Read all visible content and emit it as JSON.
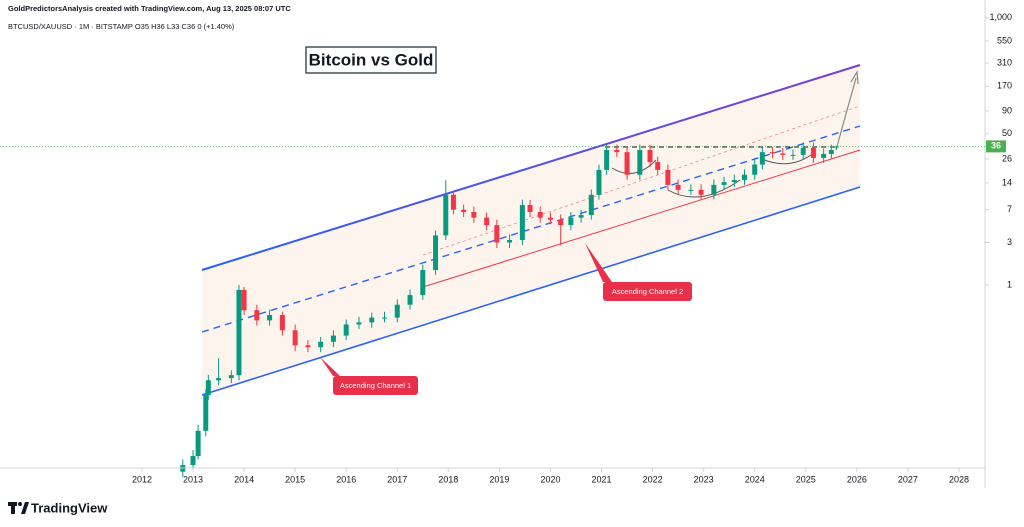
{
  "chart_data": {
    "type": "candlestick",
    "title": "Bitcoin vs Gold",
    "header": "GoldPredictorsAnalysis created with TradingView.com, Aug 13, 2025 08:07 UTC",
    "symbol_line": "BTCUSD/XAUUSD · 1M · BITSTAMP  O35  H36  L33  C36  0 (+1.40%)",
    "annotations": [
      "Ascending Channel 1",
      "Ascending Channel 2"
    ],
    "brand": "TradingView",
    "log_scale": true,
    "up_color": "#089981",
    "down_color": "#f23645",
    "last_price_color": "#4caf50",
    "xlim": [
      2009.22,
      2028.51
    ],
    "ylim": [
      0.0088,
      1585
    ],
    "xticks": [
      2012,
      2013,
      2014,
      2015,
      2016,
      2017,
      2018,
      2019,
      2020,
      2021,
      2022,
      2023,
      2024,
      2025,
      2026,
      2027,
      2028
    ],
    "yticks": [
      {
        "value": 1000,
        "label": "1,000"
      },
      550,
      310,
      170,
      90,
      50,
      26,
      14,
      7,
      3,
      1
    ],
    "x": [
      2012.8,
      2013.0,
      2013.1,
      2013.25,
      2013.3,
      2013.5,
      2013.75,
      2013.9,
      2014.0,
      2014.25,
      2014.5,
      2014.75,
      2015.0,
      2015.25,
      2015.5,
      2015.75,
      2016.0,
      2016.25,
      2016.5,
      2016.75,
      2017.0,
      2017.25,
      2017.5,
      2017.75,
      2017.95,
      2018.1,
      2018.3,
      2018.5,
      2018.75,
      2018.95,
      2019.2,
      2019.45,
      2019.6,
      2019.8,
      2020.0,
      2020.2,
      2020.4,
      2020.6,
      2020.8,
      2020.95,
      2021.1,
      2021.3,
      2021.5,
      2021.75,
      2021.95,
      2022.1,
      2022.3,
      2022.5,
      2022.75,
      2022.95,
      2023.2,
      2023.4,
      2023.6,
      2023.8,
      2024.0,
      2024.15,
      2024.35,
      2024.55,
      2024.75,
      2024.95,
      2025.15,
      2025.35,
      2025.5,
      2025.6
    ],
    "open": [
      0.008,
      0.0095,
      0.012,
      0.023,
      0.058,
      0.085,
      0.09,
      0.097,
      0.88,
      0.52,
      0.4,
      0.46,
      0.31,
      0.21,
      0.2,
      0.23,
      0.27,
      0.36,
      0.38,
      0.43,
      0.43,
      0.6,
      0.77,
      1.47,
      3.6,
      10.3,
      7,
      6.6,
      5.7,
      4.7,
      3.0,
      3.2,
      7.9,
      6.6,
      5.7,
      5.4,
      4.7,
      5.7,
      6.1,
      10.3,
      19.6,
      32.8,
      31,
      17.3,
      32.8,
      24,
      19.6,
      13.3,
      11.7,
      11.7,
      10.3,
      13.3,
      14.3,
      15.1,
      17.3,
      22.5,
      31,
      30,
      28.9,
      28.9,
      34.6,
      26.7,
      29.6,
      35
    ],
    "high": [
      0.011,
      0.014,
      0.027,
      0.067,
      0.098,
      0.15,
      0.11,
      1.0,
      0.95,
      0.6,
      0.53,
      0.5,
      0.36,
      0.24,
      0.26,
      0.31,
      0.41,
      0.44,
      0.49,
      0.5,
      0.69,
      0.89,
      1.7,
      4.1,
      15,
      11.5,
      8,
      7.6,
      6.5,
      5.4,
      3.7,
      9.1,
      9,
      7.6,
      6.5,
      6.2,
      6.6,
      7,
      11.8,
      22.5,
      37.7,
      37.7,
      35.6,
      37.7,
      37.7,
      27.6,
      22.5,
      15.3,
      13.5,
      13.5,
      15.3,
      16.4,
      17.4,
      19.9,
      25.9,
      35.6,
      35.6,
      34.5,
      33.2,
      39.8,
      39.8,
      34,
      37.7,
      36
    ],
    "low": [
      0.007,
      0.0084,
      0.011,
      0.02,
      0.051,
      0.075,
      0.079,
      0.085,
      0.46,
      0.35,
      0.35,
      0.27,
      0.18,
      0.176,
      0.176,
      0.2,
      0.24,
      0.32,
      0.33,
      0.38,
      0.38,
      0.53,
      0.68,
      1.3,
      3.2,
      6.2,
      5.8,
      5,
      4.1,
      2.6,
      2.6,
      2.8,
      5.8,
      5,
      4.8,
      2.8,
      4.1,
      5,
      5.4,
      9.1,
      17.2,
      27.3,
      15.2,
      15.2,
      21.1,
      17.2,
      11.7,
      10.3,
      10.3,
      9.1,
      9.1,
      11.7,
      12.6,
      13.3,
      15.2,
      19.8,
      26.4,
      25.4,
      25.4,
      25.4,
      23.5,
      23.5,
      26,
      33
    ],
    "close": [
      0.0095,
      0.012,
      0.023,
      0.058,
      0.085,
      0.09,
      0.097,
      0.88,
      0.52,
      0.4,
      0.46,
      0.31,
      0.21,
      0.2,
      0.23,
      0.27,
      0.36,
      0.38,
      0.43,
      0.43,
      0.6,
      0.77,
      1.47,
      3.6,
      10.3,
      7,
      6.6,
      5.7,
      4.7,
      3.0,
      3.2,
      7.9,
      6.6,
      5.7,
      5.4,
      4.7,
      5.7,
      6.1,
      10.3,
      19.6,
      32.8,
      31,
      17.3,
      32.8,
      24,
      19.6,
      13.3,
      11.7,
      11.7,
      10.3,
      13.3,
      14.3,
      15.1,
      17.3,
      22.5,
      31,
      30,
      28.9,
      28.9,
      34.6,
      26.7,
      29.6,
      32.8,
      36
    ]
  }
}
